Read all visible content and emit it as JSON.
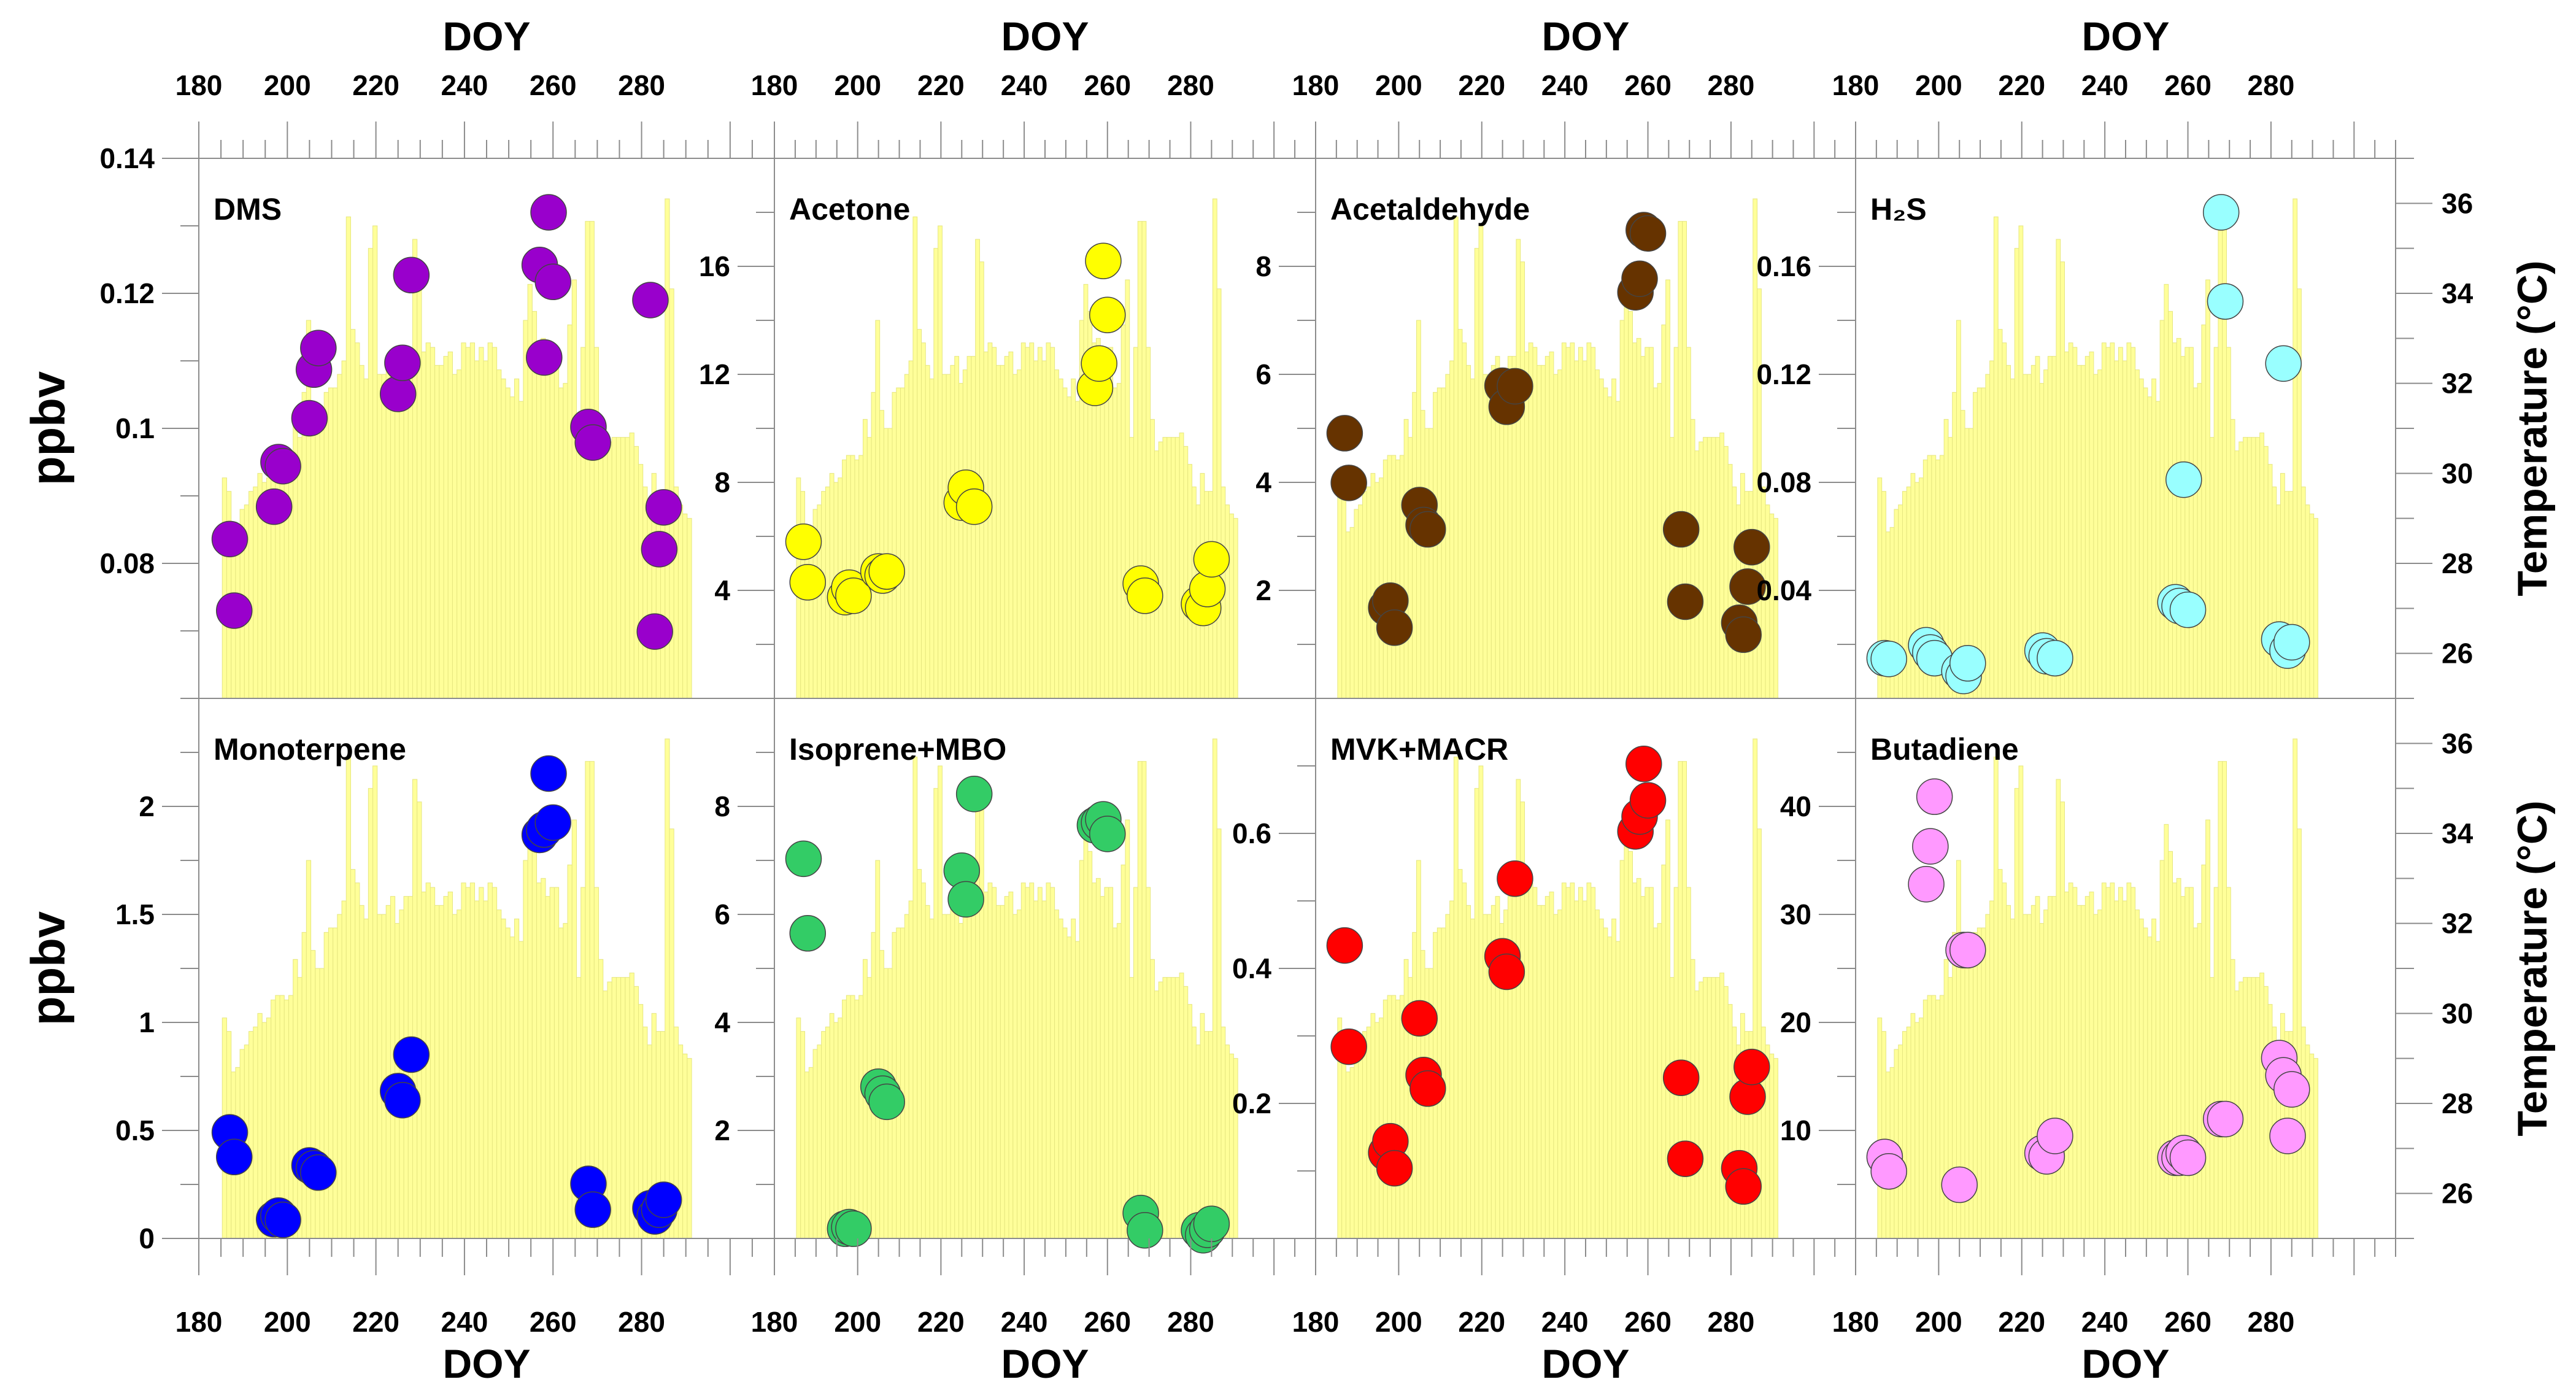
{
  "chart_data": {
    "type": "scatter",
    "layout": "2 rows x 4 panels, each overlaid on a daily temperature bar series",
    "grid": false,
    "x_axis": {
      "label": "DOY",
      "xlim": [
        180,
        310
      ],
      "ticks": [
        "180",
        "200",
        "220",
        "240",
        "260",
        "280"
      ],
      "positions": [
        "top",
        "bottom"
      ]
    },
    "temperature": {
      "type": "bar",
      "label": "Temperature (°C)",
      "ylim": [
        25,
        37
      ],
      "ticks": [
        "26",
        "28",
        "30",
        "32",
        "34",
        "36"
      ],
      "color": "#ffff99",
      "doy_start": 185,
      "values": [
        29.9,
        29.6,
        28.7,
        28.8,
        29.2,
        29.3,
        29.6,
        29.7,
        30.0,
        29.8,
        29.9,
        30.3,
        30.4,
        30.4,
        30.3,
        30.4,
        31.2,
        30.8,
        31.8,
        33.4,
        31.4,
        31.0,
        31.0,
        31.8,
        31.9,
        31.9,
        32.2,
        32.5,
        35.7,
        33.2,
        32.9,
        32.4,
        32.1,
        35.0,
        35.5,
        32.2,
        32.2,
        32.4,
        32.6,
        32.0,
        32.3,
        32.6,
        32.6,
        35.2,
        34.7,
        32.7,
        32.9,
        32.8,
        32.4,
        32.4,
        32.6,
        32.7,
        32.2,
        32.3,
        32.9,
        32.8,
        32.9,
        32.5,
        32.8,
        32.5,
        32.9,
        32.8,
        32.3,
        32.1,
        31.9,
        31.7,
        32.1,
        31.6,
        33.4,
        34.2,
        33.6,
        32.9,
        33.0,
        32.6,
        32.8,
        32.8,
        31.9,
        32.0,
        33.3,
        34.3,
        30.8,
        32.8,
        35.6,
        35.6,
        32.8,
        31.2,
        30.5,
        30.7,
        30.8,
        30.8,
        30.8,
        30.8,
        30.9,
        30.6,
        30.2,
        29.7,
        29.3,
        30.0,
        29.6,
        29.6,
        36.1,
        34.1,
        29.7,
        29.3,
        29.1,
        29.0
      ]
    },
    "sample_doy": [
      187,
      188,
      197,
      198,
      199,
      205,
      206,
      207,
      225,
      226,
      228,
      257,
      258,
      259,
      260,
      268,
      269,
      282,
      283,
      284,
      285
    ],
    "panels": [
      {
        "title": "DMS",
        "ylabel": "ppbv",
        "color": "#9900cc",
        "ylim": [
          0.06,
          0.14
        ],
        "minor": 0.01,
        "yticks": [
          "0.08",
          "0.1",
          "0.12",
          "0.14"
        ],
        "values": [
          0.0836,
          0.073,
          0.0884,
          0.095,
          0.0944,
          0.1015,
          0.1087,
          0.1119,
          0.1051,
          0.1097,
          0.1227,
          0.1242,
          0.1105,
          0.132,
          0.1217,
          0.1002,
          0.0979,
          0.119,
          0.0699,
          0.0821,
          0.0883
        ]
      },
      {
        "title": "Acetone",
        "ylabel": "",
        "color": "#ffff00",
        "ylim": [
          0,
          20
        ],
        "minor": 2,
        "yticks": [
          "4",
          "8",
          "12",
          "16"
        ],
        "values": [
          5.8,
          4.3,
          3.75,
          4.1,
          3.8,
          4.7,
          4.55,
          4.7,
          7.25,
          7.8,
          7.1,
          11.5,
          12.4,
          16.2,
          14.2,
          4.25,
          3.8,
          3.5,
          3.35,
          4.05,
          5.15
        ]
      },
      {
        "title": "Acetaldehyde",
        "ylabel": "",
        "color": "#663300",
        "ylim": [
          0,
          10
        ],
        "minor": 1,
        "yticks": [
          "2",
          "4",
          "6",
          "8"
        ],
        "values": [
          4.91,
          3.99,
          1.68,
          1.81,
          1.31,
          3.58,
          3.21,
          3.13,
          5.79,
          5.4,
          5.78,
          7.52,
          7.77,
          8.67,
          8.61,
          3.13,
          1.79,
          1.4,
          1.18,
          2.07,
          2.8
        ]
      },
      {
        "title": "H₂S",
        "ylabel": "",
        "color": "#99ffff",
        "ylim": [
          0,
          0.2
        ],
        "minor": 0.02,
        "yticks": [
          "0.04",
          "0.08",
          "0.12",
          "0.16"
        ],
        "values": [
          0.0149,
          0.0146,
          0.0197,
          0.017,
          0.0149,
          0.0101,
          0.0083,
          0.013,
          0.0177,
          0.0156,
          0.0149,
          0.0356,
          0.0342,
          0.081,
          0.0328,
          0.18,
          0.147,
          0.0218,
          0.124,
          0.0177,
          0.0208
        ]
      },
      {
        "title": "Monoterpene",
        "ylabel": "ppbv",
        "color": "#0000ff",
        "ylim": [
          0,
          2.5
        ],
        "minor": 0.25,
        "yticks": [
          "0",
          "0.5",
          "1",
          "1.5",
          "2"
        ],
        "values": [
          0.491,
          0.377,
          0.089,
          0.106,
          0.086,
          0.338,
          0.325,
          0.305,
          0.682,
          0.64,
          0.851,
          1.868,
          1.893,
          2.152,
          1.925,
          0.253,
          0.133,
          0.14,
          0.102,
          0.133,
          0.179
        ]
      },
      {
        "title": "Isoprene+MBO",
        "ylabel": "",
        "color": "#33cc66",
        "ylim": [
          0,
          10
        ],
        "minor": 1,
        "yticks": [
          "2",
          "4",
          "6",
          "8"
        ],
        "values": [
          7.03,
          5.65,
          0.18,
          0.21,
          0.18,
          2.81,
          2.68,
          2.53,
          6.81,
          6.28,
          8.23,
          7.65,
          7.7,
          7.76,
          7.49,
          0.47,
          0.15,
          0.15,
          0.06,
          0.16,
          0.27
        ]
      },
      {
        "title": "MVK+MACR",
        "ylabel": "",
        "color": "#ff0000",
        "ylim": [
          0,
          0.8
        ],
        "minor": 0.1,
        "yticks": [
          "0.2",
          "0.4",
          "0.6"
        ],
        "values": [
          0.434,
          0.284,
          0.127,
          0.144,
          0.104,
          0.326,
          0.242,
          0.222,
          0.418,
          0.395,
          0.533,
          0.603,
          0.625,
          0.703,
          0.649,
          0.238,
          0.118,
          0.104,
          0.077,
          0.21,
          0.254
        ]
      },
      {
        "title": "Butadiene",
        "ylabel": "",
        "color": "#ff99ff",
        "ylim": [
          0,
          50
        ],
        "minor": 5,
        "yticks": [
          "10",
          "20",
          "30",
          "40"
        ],
        "values": [
          7.54,
          6.21,
          32.8,
          36.3,
          40.9,
          4.97,
          26.7,
          26.7,
          7.9,
          7.6,
          9.49,
          7.47,
          7.47,
          7.9,
          7.47,
          11.05,
          11.05,
          16.7,
          15.1,
          9.49,
          13.8
        ]
      }
    ]
  }
}
